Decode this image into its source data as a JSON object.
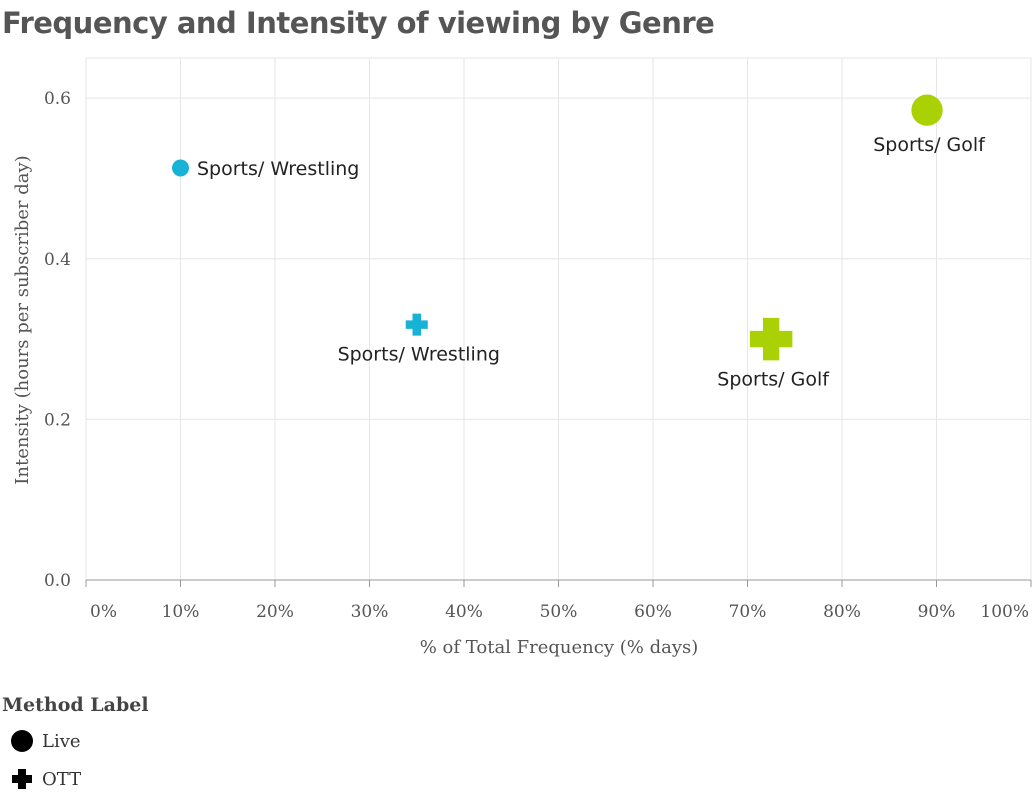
{
  "chart_data": {
    "type": "scatter",
    "title": "Frequency and Intensity of viewing by Genre",
    "xlabel": "% of Total Frequency (% days)",
    "ylabel": "Intensity (hours per subscriber day)",
    "xlim": [
      0,
      100
    ],
    "ylim": [
      0,
      0.65
    ],
    "x_ticks": [
      "0%",
      "10%",
      "20%",
      "30%",
      "40%",
      "50%",
      "60%",
      "70%",
      "80%",
      "90%",
      "100%"
    ],
    "y_ticks": [
      "0.0",
      "0.2",
      "0.4",
      "0.6"
    ],
    "grid": true,
    "legend": {
      "title": "Method Label",
      "placement": "bottom-left",
      "items": [
        {
          "label": "Live",
          "symbol": "circle"
        },
        {
          "label": "OTT",
          "symbol": "cross"
        }
      ]
    },
    "points": [
      {
        "label": "Sports/ Wrestling",
        "method": "Live",
        "x": 10,
        "y": 0.513,
        "size": 1,
        "color": "#17b2d6",
        "label_position": "right"
      },
      {
        "label": "Sports/ Wrestling",
        "method": "OTT",
        "x": 35,
        "y": 0.318,
        "size": 0.7,
        "color": "#17b2d6",
        "label_position": "below"
      },
      {
        "label": "Sports/ Golf",
        "method": "Live",
        "x": 89,
        "y": 0.585,
        "size": 3.4,
        "color": "#a9d103",
        "label_position": "below"
      },
      {
        "label": "Sports/ Golf",
        "method": "OTT",
        "x": 72.5,
        "y": 0.3,
        "size": 2.6,
        "color": "#a9d103",
        "label_position": "below"
      }
    ]
  }
}
